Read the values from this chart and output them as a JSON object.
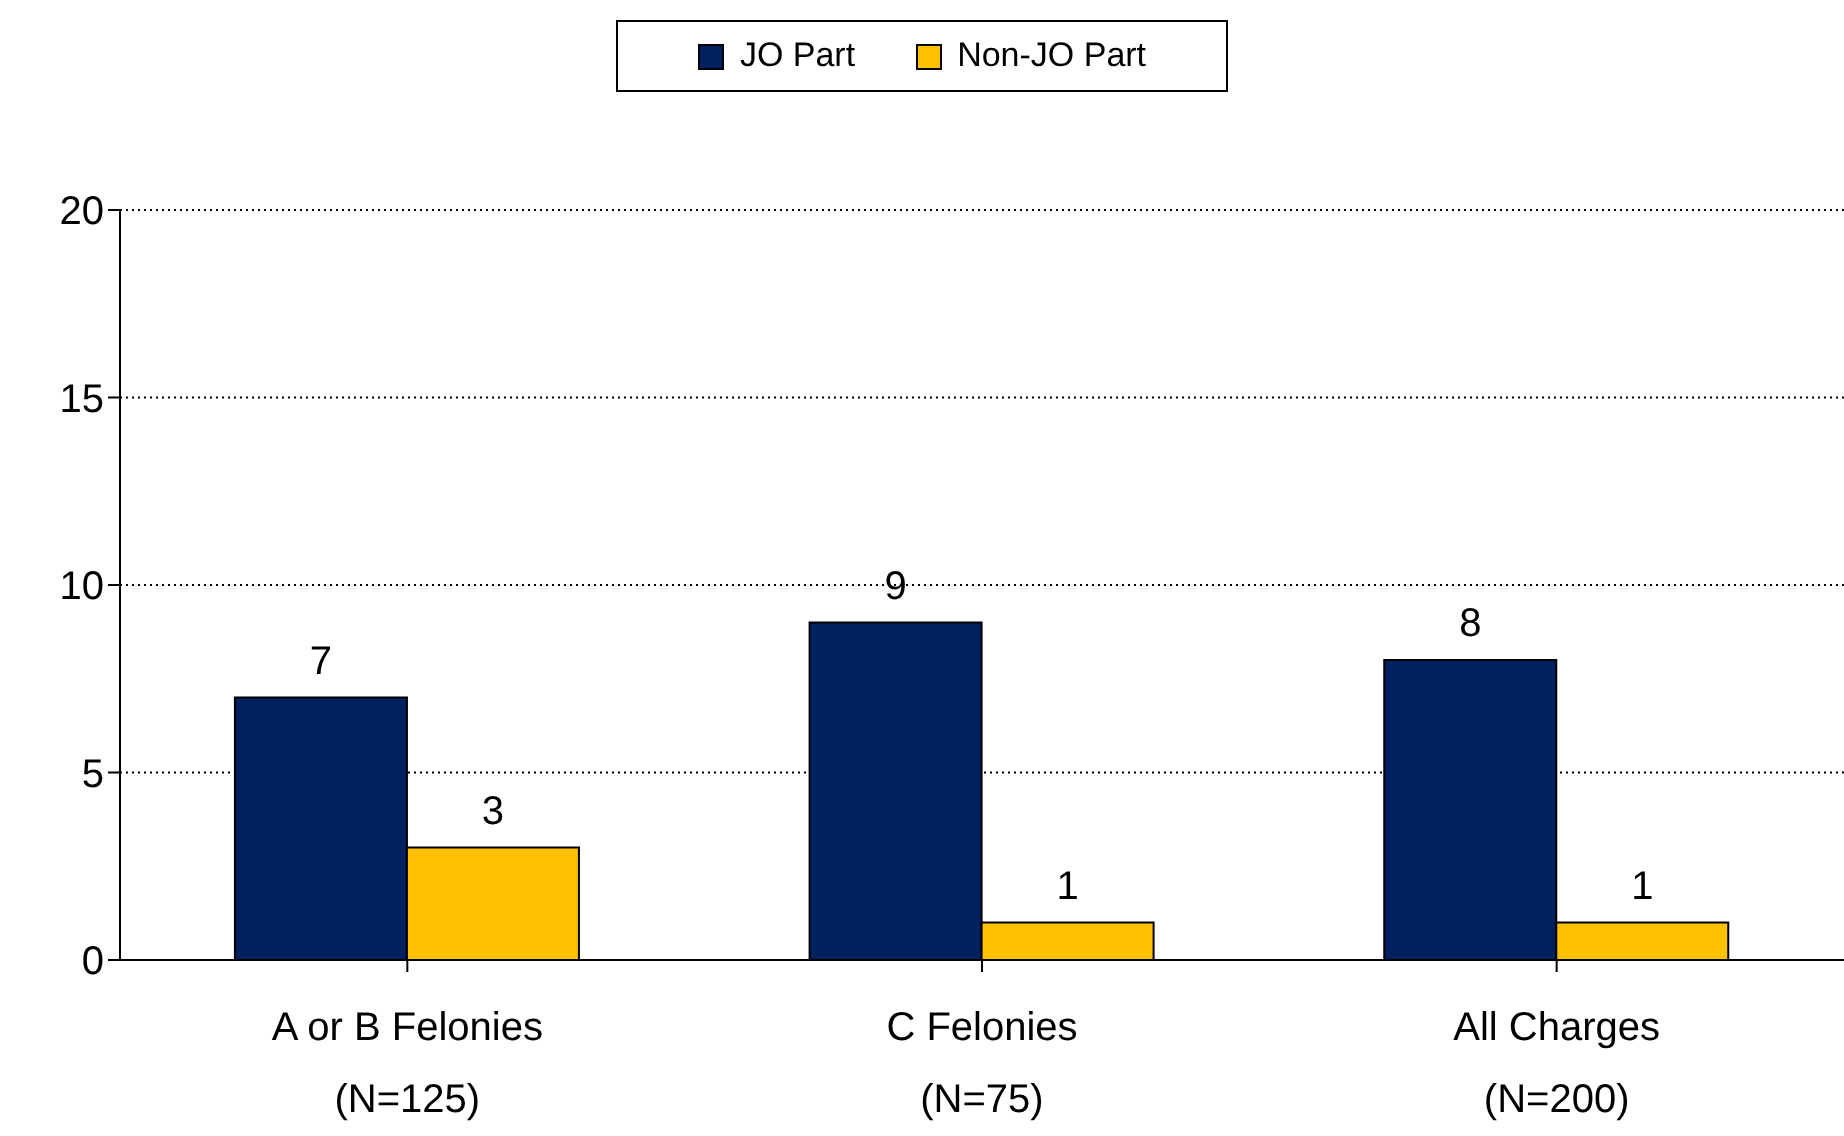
{
  "chart_data": {
    "type": "bar",
    "categories": [
      "A or B Felonies\n(N=125)",
      "C Felonies\n(N=75)",
      "All Charges\n(N=200)"
    ],
    "series": [
      {
        "name": "JO Part",
        "color": "#002060",
        "values": [
          7,
          9,
          8
        ]
      },
      {
        "name": "Non-JO Part",
        "color": "#ffc000",
        "values": [
          3,
          1,
          1
        ]
      }
    ],
    "ylim": [
      0,
      20
    ],
    "yticks": [
      0,
      5,
      10,
      15,
      20
    ],
    "grid": "y",
    "legend": "top",
    "data_labels": true
  }
}
